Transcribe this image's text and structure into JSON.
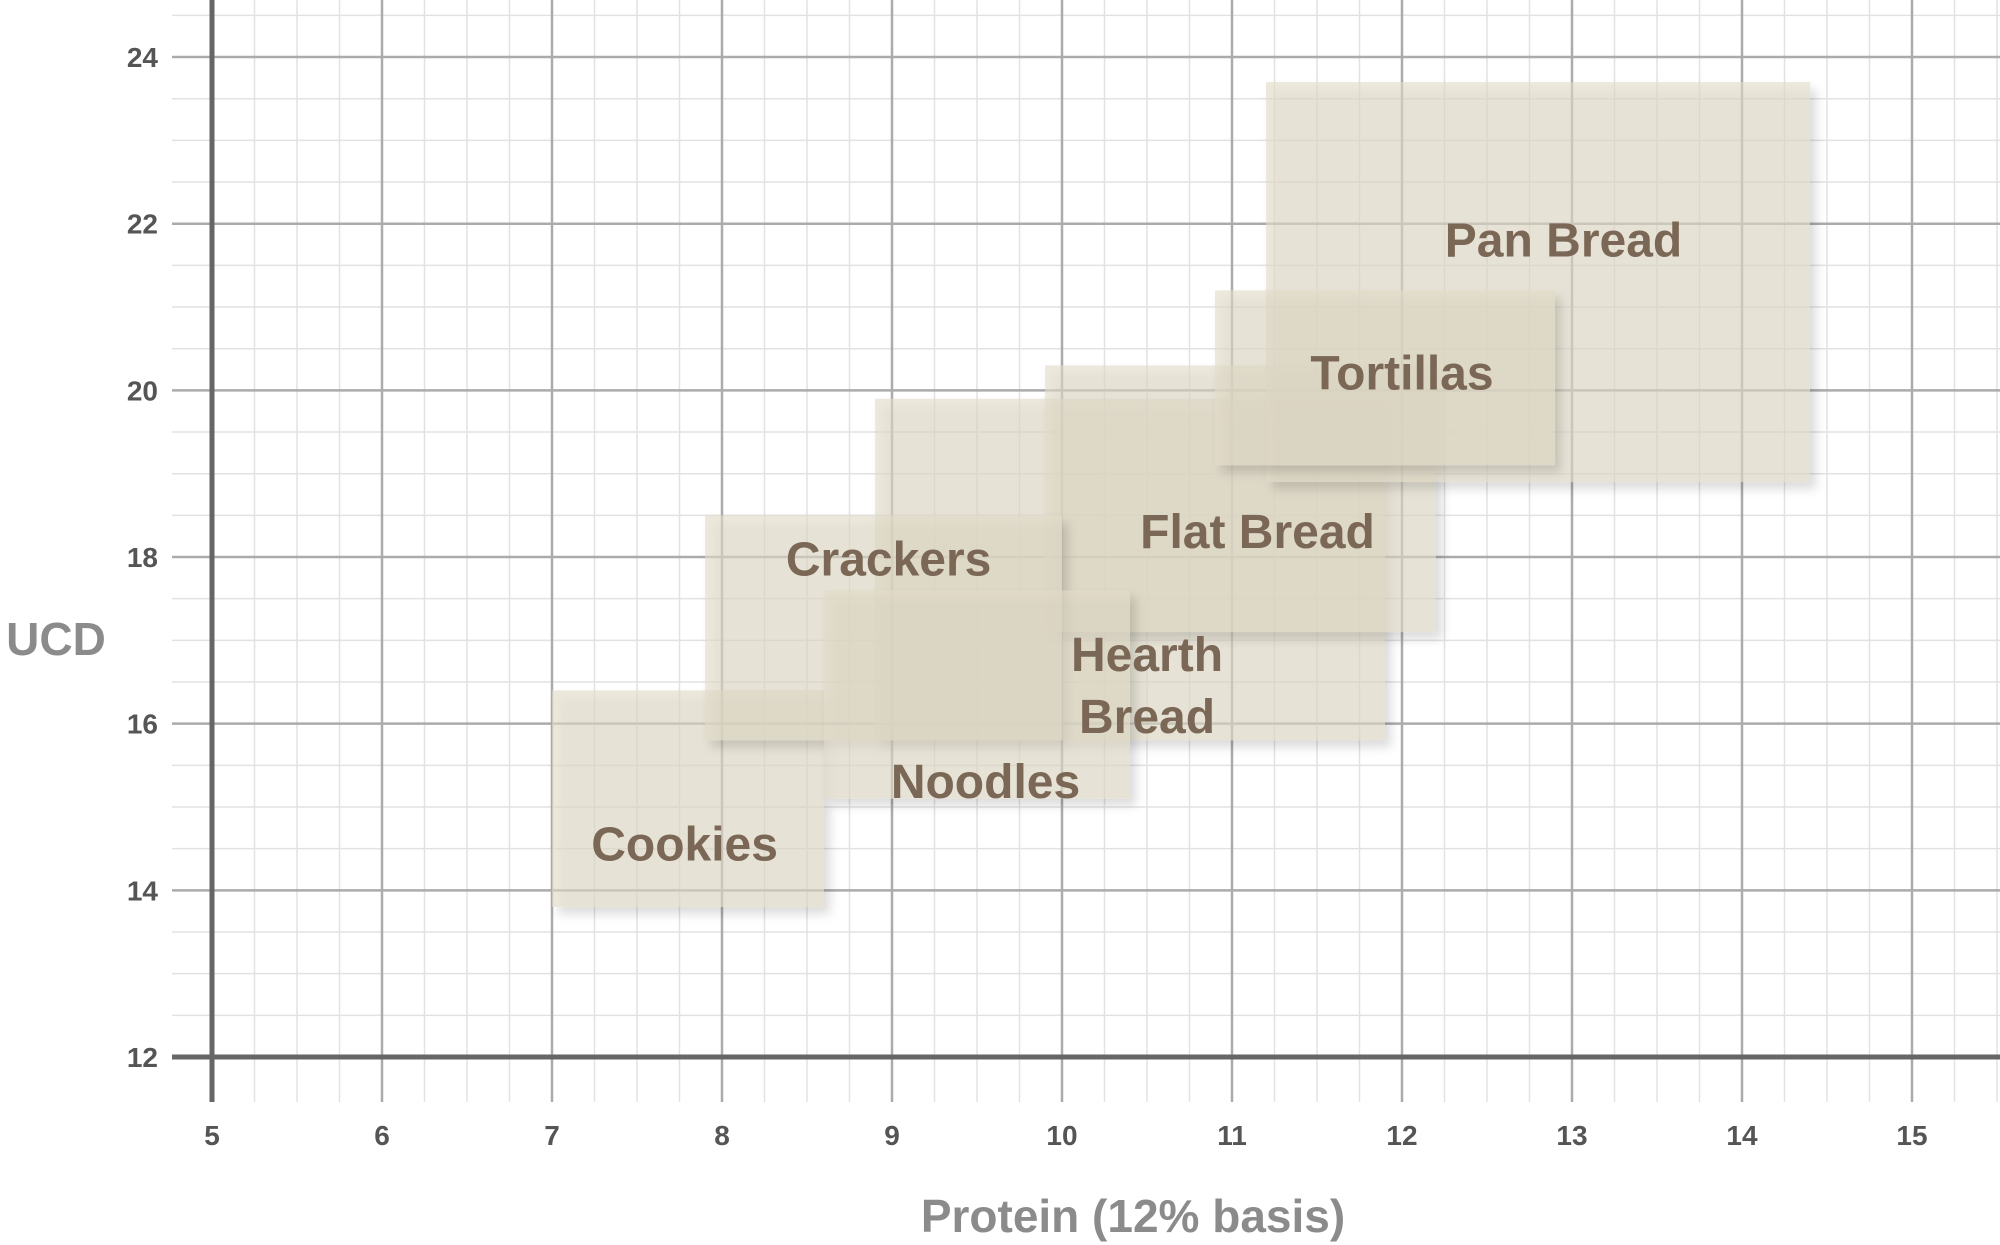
{
  "chart_data": {
    "type": "range-boxes",
    "title": "",
    "xlabel": "Protein (12% basis)",
    "ylabel": "UCD",
    "xlim": [
      5,
      15.5
    ],
    "ylim": [
      12,
      24.7
    ],
    "xticks": [
      5,
      6,
      7,
      8,
      9,
      10,
      11,
      12,
      13,
      14,
      15
    ],
    "yticks": [
      12,
      14,
      16,
      18,
      20,
      22,
      24
    ],
    "grid": true,
    "minor_grid": true,
    "legend": "none",
    "box_color": "#e2dbc8",
    "label_color": "#7b6755",
    "regions": [
      {
        "name": "Cookies",
        "lines": [
          "Cookies"
        ],
        "x": [
          7.0,
          8.6
        ],
        "y": [
          13.8,
          16.4
        ]
      },
      {
        "name": "Hearth Bread",
        "lines": [
          "Hearth",
          "Bread"
        ],
        "x": [
          8.9,
          11.9
        ],
        "y": [
          15.8,
          19.9
        ]
      },
      {
        "name": "Flat Bread",
        "lines": [
          "Flat Bread"
        ],
        "x": [
          9.9,
          12.2
        ],
        "y": [
          17.1,
          20.3
        ]
      },
      {
        "name": "Crackers",
        "lines": [
          "Crackers"
        ],
        "x": [
          7.9,
          10.0
        ],
        "y": [
          15.8,
          18.5
        ]
      },
      {
        "name": "Noodles",
        "lines": [
          "Noodles"
        ],
        "x": [
          8.6,
          10.4
        ],
        "y": [
          15.1,
          17.6
        ]
      },
      {
        "name": "Pan Bread",
        "lines": [
          "Pan Bread"
        ],
        "x": [
          11.2,
          14.4
        ],
        "y": [
          18.9,
          23.7
        ]
      },
      {
        "name": "Tortillas",
        "lines": [
          "Tortillas"
        ],
        "x": [
          10.9,
          12.9
        ],
        "y": [
          19.1,
          21.2
        ]
      }
    ]
  }
}
